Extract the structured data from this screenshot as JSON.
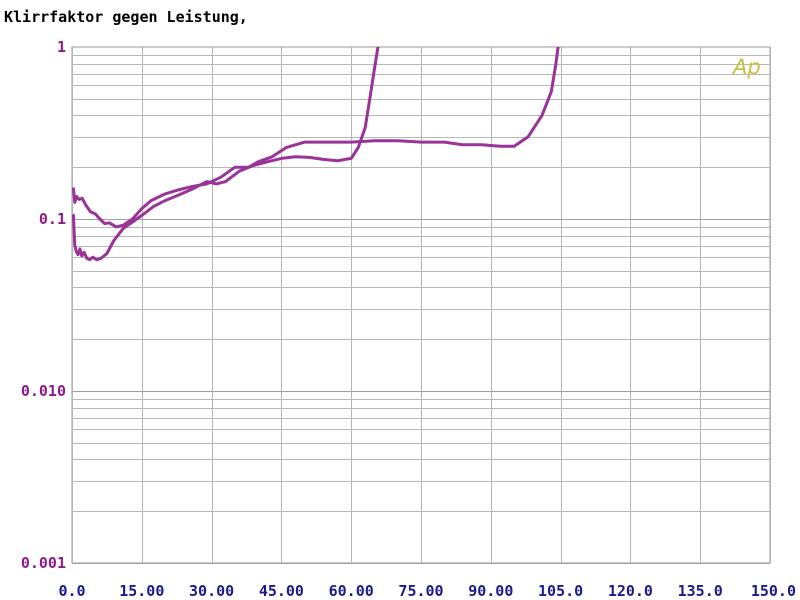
{
  "chart_data": {
    "type": "line",
    "title": "Klirrfaktor gegen Leistung,",
    "xlabel": "",
    "ylabel": "",
    "xlim": [
      0,
      150
    ],
    "ylim": [
      0.001,
      1
    ],
    "yscale": "log",
    "grid": true,
    "x_ticks": [
      "0.0",
      "15.00",
      "30.00",
      "45.00",
      "60.00",
      "75.00",
      "90.00",
      "105.0",
      "120.0",
      "135.0",
      "150.0"
    ],
    "x_tick_values": [
      0,
      15,
      30,
      45,
      60,
      75,
      90,
      105,
      120,
      135,
      150
    ],
    "y_ticks": [
      "0.001",
      "0.010",
      "0.1",
      "1"
    ],
    "y_tick_values": [
      0.001,
      0.01,
      0.1,
      1
    ],
    "line_color": "#993399",
    "watermark": "Ap",
    "series": [
      {
        "x": [
          0.3,
          0.6,
          0.9,
          1.3,
          1.7,
          2.1,
          2.6,
          3.2,
          3.8,
          4.5,
          5.3,
          6.2,
          7.5,
          9,
          11,
          13,
          15,
          17.5,
          20,
          23,
          26,
          29,
          31,
          33,
          36,
          39,
          42,
          45,
          48,
          51,
          54,
          57,
          60,
          61.5,
          63,
          64,
          65,
          66,
          67
        ],
        "y": [
          0.105,
          0.07,
          0.065,
          0.062,
          0.067,
          0.061,
          0.064,
          0.059,
          0.058,
          0.06,
          0.058,
          0.059,
          0.063,
          0.075,
          0.088,
          0.096,
          0.105,
          0.118,
          0.128,
          0.138,
          0.15,
          0.165,
          0.16,
          0.165,
          0.19,
          0.205,
          0.215,
          0.225,
          0.23,
          0.228,
          0.222,
          0.218,
          0.225,
          0.26,
          0.34,
          0.5,
          0.75,
          1.1,
          1.5
        ]
      },
      {
        "x": [
          0.3,
          0.6,
          1,
          1.5,
          2.2,
          3,
          4,
          5,
          6,
          7,
          8,
          9.5,
          11,
          13,
          15,
          17,
          20,
          23,
          26,
          29,
          32,
          35,
          38,
          40,
          43,
          46,
          50,
          55,
          60,
          65,
          70,
          75,
          80,
          84,
          88,
          92,
          95,
          98,
          101,
          103,
          104,
          105
        ],
        "y": [
          0.15,
          0.125,
          0.135,
          0.13,
          0.132,
          0.12,
          0.11,
          0.107,
          0.1,
          0.094,
          0.095,
          0.09,
          0.092,
          0.1,
          0.115,
          0.128,
          0.14,
          0.148,
          0.155,
          0.16,
          0.175,
          0.2,
          0.2,
          0.215,
          0.23,
          0.26,
          0.28,
          0.28,
          0.28,
          0.285,
          0.285,
          0.28,
          0.28,
          0.27,
          0.27,
          0.265,
          0.265,
          0.3,
          0.4,
          0.55,
          0.8,
          1.3
        ]
      }
    ]
  }
}
